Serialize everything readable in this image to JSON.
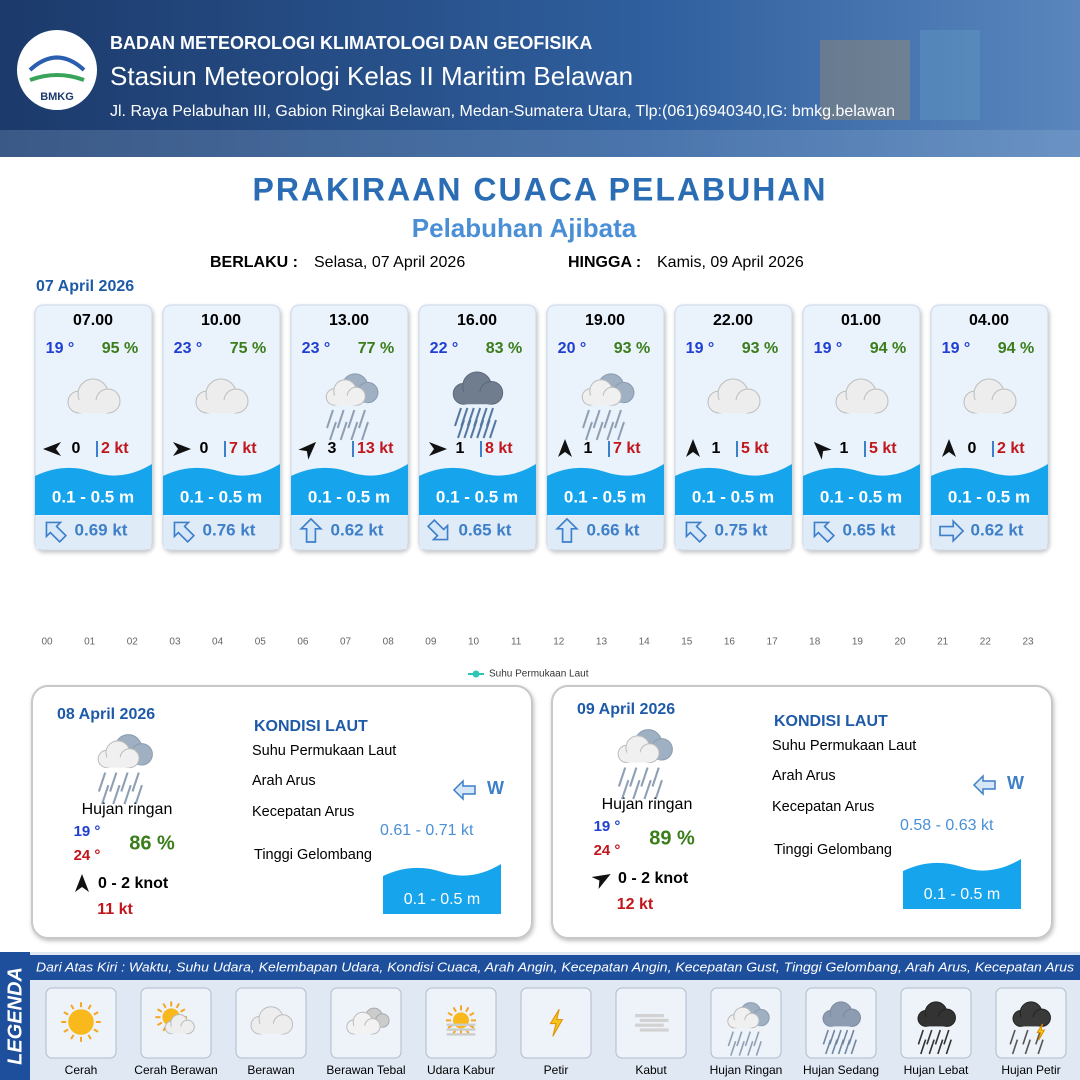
{
  "header": {
    "logo_text": "BMKG",
    "agency": "BADAN METEOROLOGI KLIMATOLOGI DAN GEOFISIKA",
    "station": "Stasiun Meteorologi Kelas II Maritim Belawan",
    "address": "Jl. Raya Pelabuhan III, Gabion Ringkai Belawan, Medan-Sumatera Utara, Tlp:(061)6940340,IG: bmkg.belawan"
  },
  "title": "PRAKIRAAN CUACA PELABUHAN",
  "subtitle": "Pelabuhan Ajibata",
  "validity": {
    "from_label": "BERLAKU :",
    "from": "Selasa, 07 April 2026",
    "to_label": "HINGGA :",
    "to": "Kamis, 09 April 2026"
  },
  "forecast": {
    "date": "07 April 2026",
    "cards": [
      {
        "time": "07.00",
        "temp": "19 °",
        "humidity": "95 %",
        "wind": "0",
        "gust": "2 kt",
        "wave": "0.1 - 0.5 m",
        "current": "0.69 kt"
      },
      {
        "time": "10.00",
        "temp": "23 °",
        "humidity": "75 %",
        "wind": "0",
        "gust": "7 kt",
        "wave": "0.1 - 0.5 m",
        "current": "0.76 kt"
      },
      {
        "time": "13.00",
        "temp": "23 °",
        "humidity": "77 %",
        "wind": "3",
        "gust": "13 kt",
        "wave": "0.1 - 0.5 m",
        "current": "0.62 kt"
      },
      {
        "time": "16.00",
        "temp": "22 °",
        "humidity": "83 %",
        "wind": "1",
        "gust": "8 kt",
        "wave": "0.1 - 0.5 m",
        "current": "0.65 kt"
      },
      {
        "time": "19.00",
        "temp": "20 °",
        "humidity": "93 %",
        "wind": "1",
        "gust": "7 kt",
        "wave": "0.1 - 0.5 m",
        "current": "0.66 kt"
      },
      {
        "time": "22.00",
        "temp": "19 °",
        "humidity": "93 %",
        "wind": "1",
        "gust": "5 kt",
        "wave": "0.1 - 0.5 m",
        "current": "0.75 kt"
      },
      {
        "time": "01.00",
        "temp": "19 °",
        "humidity": "94 %",
        "wind": "1",
        "gust": "5 kt",
        "wave": "0.1 - 0.5 m",
        "current": "0.65 kt"
      },
      {
        "time": "04.00",
        "temp": "19 °",
        "humidity": "94 %",
        "wind": "0",
        "gust": "2 kt",
        "wave": "0.1 - 0.5 m",
        "current": "0.62 kt"
      }
    ]
  },
  "chart_data": {
    "type": "line",
    "categories": [
      "00",
      "01",
      "02",
      "03",
      "04",
      "05",
      "06",
      "07",
      "08",
      "09",
      "10",
      "11",
      "12",
      "13",
      "14",
      "15",
      "16",
      "17",
      "18",
      "19",
      "20",
      "21",
      "22",
      "23"
    ],
    "series": [
      {
        "name": "Suhu Permukaan Laut",
        "color": "#2ec4b6",
        "values": [
          null,
          null,
          null,
          null,
          null,
          null,
          null,
          null,
          null,
          null,
          null,
          null,
          null,
          null,
          null,
          null,
          null,
          null,
          null,
          null,
          null,
          null,
          null,
          null
        ]
      }
    ]
  },
  "days": [
    {
      "date": "08 April 2026",
      "condition": "Hujan ringan",
      "temp_min": "19 °",
      "temp_max": "24 °",
      "humidity": "86 %",
      "wind": "0  - 2 knot",
      "gust": "11 kt",
      "sea_title": "KONDISI LAUT",
      "sst_label": "Suhu Permukaan Laut",
      "current_dir_label": "Arah Arus",
      "current_speed_label": "Kecepatan Arus",
      "wave_label": "Tinggi Gelombang",
      "current_dir": "W",
      "current_speed": "0.61 - 0.71 kt",
      "wave": "0.1 - 0.5 m"
    },
    {
      "date": "09 April 2026",
      "condition": "Hujan ringan",
      "temp_min": "19 °",
      "temp_max": "24 °",
      "humidity": "89 %",
      "wind": "0  - 2 knot",
      "gust": "12 kt",
      "sea_title": "KONDISI LAUT",
      "sst_label": "Suhu Permukaan Laut",
      "current_dir_label": "Arah Arus",
      "current_speed_label": "Kecepatan Arus",
      "wave_label": "Tinggi Gelombang",
      "current_dir": "W",
      "current_speed": "0.58 - 0.63 kt",
      "wave": "0.1 - 0.5 m"
    }
  ],
  "legend": {
    "title": "LEGENDA",
    "description": "Dari Atas Kiri : Waktu, Suhu Udara, Kelembapan Udara, Kondisi Cuaca, Arah Angin, Kecepatan Angin, Kecepatan Gust, Tinggi Gelombang, Arah Arus, Kecepatan Arus",
    "items": [
      "Cerah",
      "Cerah Berawan",
      "Berawan",
      "Berawan Tebal",
      "Udara Kabur",
      "Petir",
      "Kabut",
      "Hujan Ringan",
      "Hujan Sedang",
      "Hujan Lebat",
      "Hujan Petir"
    ]
  }
}
